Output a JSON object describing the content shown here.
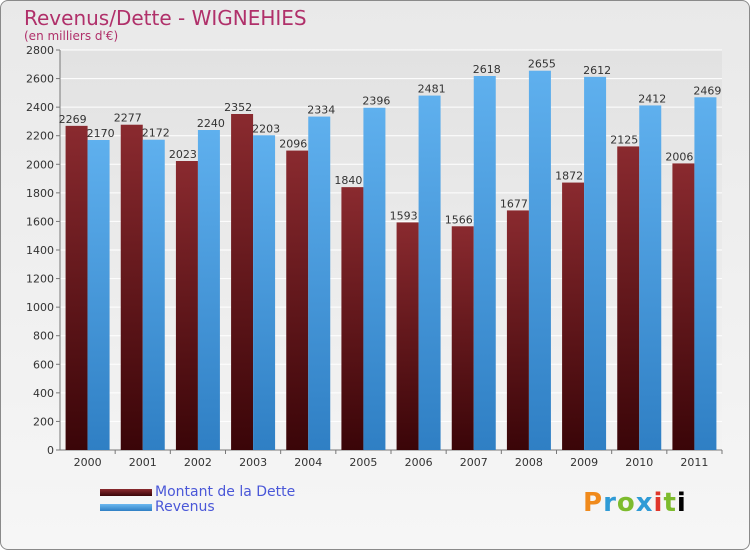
{
  "chart_data": {
    "type": "bar",
    "title": "Revenus/Dette - WIGNEHIES",
    "subtitle": "(en milliers d'€)",
    "categories": [
      "2000",
      "2001",
      "2002",
      "2003",
      "2004",
      "2005",
      "2006",
      "2007",
      "2008",
      "2009",
      "2010",
      "2011"
    ],
    "series": [
      {
        "name": "Montant de la Dette",
        "color": "#6b1a1f",
        "values": [
          2269,
          2277,
          2023,
          2352,
          2096,
          1840,
          1593,
          1566,
          1677,
          1872,
          2125,
          2006
        ]
      },
      {
        "name": "Revenus",
        "color": "#4aa0e2",
        "values": [
          2170,
          2172,
          2240,
          2203,
          2334,
          2396,
          2481,
          2618,
          2655,
          2612,
          2412,
          2469
        ]
      }
    ],
    "ylim": [
      0,
      2800
    ],
    "yticks": [
      0,
      200,
      400,
      600,
      800,
      1000,
      1200,
      1400,
      1600,
      1800,
      2000,
      2200,
      2400,
      2600,
      2800
    ],
    "grid": true,
    "legend_position": "bottom-left"
  },
  "logo": {
    "letters": [
      "P",
      "r",
      "o",
      "x",
      "i",
      "t",
      "i"
    ]
  },
  "colors": {
    "title": "#b0306a",
    "legend_text": "#4a57d8"
  }
}
